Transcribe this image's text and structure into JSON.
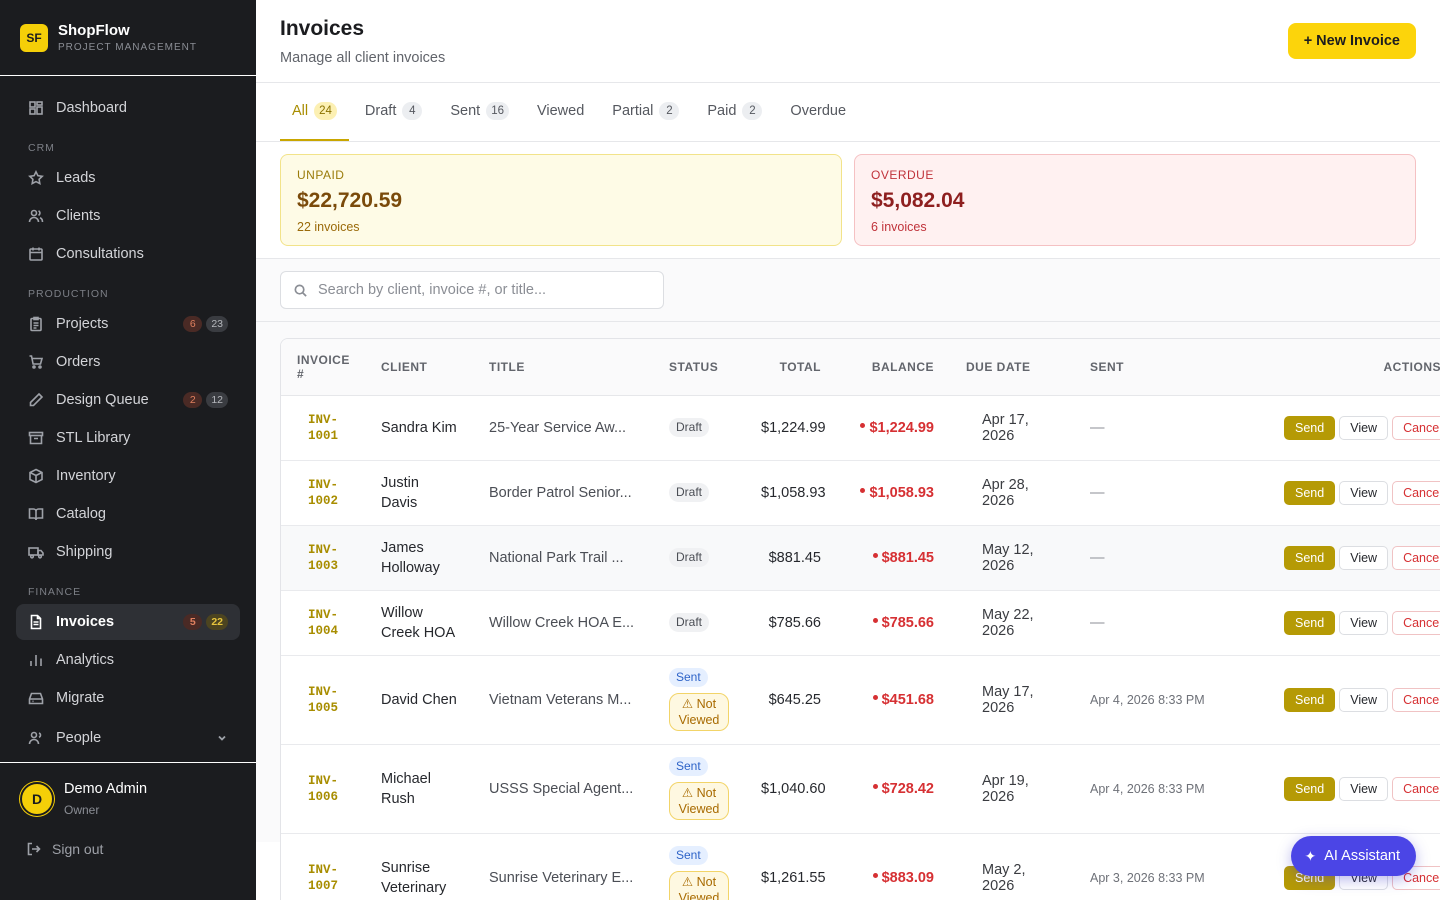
{
  "brand": {
    "logo": "SF",
    "name": "ShopFlow",
    "subtitle": "PROJECT MANAGEMENT"
  },
  "sidebar": {
    "dashboard": "Dashboard",
    "crm_label": "CRM",
    "leads": "Leads",
    "clients": "Clients",
    "consultations": "Consultations",
    "production_label": "PRODUCTION",
    "projects": "Projects",
    "projects_badge_red": "6",
    "projects_badge": "23",
    "orders": "Orders",
    "design_queue": "Design Queue",
    "design_badge_red": "2",
    "design_badge": "12",
    "stl_library": "STL Library",
    "inventory": "Inventory",
    "catalog": "Catalog",
    "shipping": "Shipping",
    "finance_label": "FINANCE",
    "invoices": "Invoices",
    "invoices_badge_red": "5",
    "invoices_badge_yellow": "22",
    "analytics": "Analytics",
    "migrate": "Migrate",
    "people": "People"
  },
  "user": {
    "initial": "D",
    "name": "Demo Admin",
    "role": "Owner",
    "signout": "Sign out"
  },
  "header": {
    "title": "Invoices",
    "subtitle": "Manage all client invoices",
    "new_button": "+ New Invoice"
  },
  "tabs": [
    {
      "label": "All",
      "count": "24"
    },
    {
      "label": "Draft",
      "count": "4"
    },
    {
      "label": "Sent",
      "count": "16"
    },
    {
      "label": "Viewed",
      "count": ""
    },
    {
      "label": "Partial",
      "count": "2"
    },
    {
      "label": "Paid",
      "count": "2"
    },
    {
      "label": "Overdue",
      "count": ""
    }
  ],
  "summary": {
    "unpaid": {
      "label": "UNPAID",
      "value": "$22,720.59",
      "count": "22 invoices"
    },
    "overdue": {
      "label": "OVERDUE",
      "value": "$5,082.04",
      "count": "6 invoices"
    }
  },
  "search": {
    "placeholder": "Search by client, invoice #, or title..."
  },
  "table": {
    "headers": {
      "invoice": "INVOICE #",
      "client": "CLIENT",
      "title": "TITLE",
      "status": "STATUS",
      "total": "TOTAL",
      "balance": "BALANCE",
      "due": "DUE DATE",
      "sent": "SENT",
      "actions": "ACTIONS"
    },
    "action_labels": {
      "send": "Send",
      "view": "View",
      "cancel": "Cancel"
    },
    "rows": [
      {
        "inv1": "INV-",
        "inv2": "1001",
        "client": "Sandra Kim",
        "title": "25-Year Service Aw...",
        "status": "Draft",
        "nv": "",
        "total": "$1,224.99",
        "balance": "$1,224.99",
        "due": "Apr 17, 2026",
        "sent": "—"
      },
      {
        "inv1": "INV-",
        "inv2": "1002",
        "client": "Justin Davis",
        "title": "Border Patrol Senior...",
        "status": "Draft",
        "nv": "",
        "total": "$1,058.93",
        "balance": "$1,058.93",
        "due": "Apr 28, 2026",
        "sent": "—"
      },
      {
        "inv1": "INV-",
        "inv2": "1003",
        "client": "James Holloway",
        "title": "National Park Trail ...",
        "status": "Draft",
        "nv": "",
        "total": "$881.45",
        "balance": "$881.45",
        "due": "May 12, 2026",
        "sent": "—"
      },
      {
        "inv1": "INV-",
        "inv2": "1004",
        "client": "Willow Creek HOA",
        "title": "Willow Creek HOA E...",
        "status": "Draft",
        "nv": "",
        "total": "$785.66",
        "balance": "$785.66",
        "due": "May 22, 2026",
        "sent": "—"
      },
      {
        "inv1": "INV-",
        "inv2": "1005",
        "client": "David Chen",
        "title": "Vietnam Veterans M...",
        "status": "Sent",
        "nv": "⚠ Not Viewed",
        "total": "$645.25",
        "balance": "$451.68",
        "due": "May 17, 2026",
        "sent": "Apr 4, 2026 8:33 PM"
      },
      {
        "inv1": "INV-",
        "inv2": "1006",
        "client": "Michael Rush",
        "title": "USSS Special Agent...",
        "status": "Sent",
        "nv": "⚠ Not Viewed",
        "total": "$1,040.60",
        "balance": "$728.42",
        "due": "Apr 19, 2026",
        "sent": "Apr 4, 2026 8:33 PM"
      },
      {
        "inv1": "INV-",
        "inv2": "1007",
        "client": "Sunrise Veterinary",
        "title": "Sunrise Veterinary E...",
        "status": "Sent",
        "nv": "⚠ Not Viewed",
        "total": "$1,261.55",
        "balance": "$883.09",
        "due": "May 2, 2026",
        "sent": "Apr 3, 2026 8:33 PM"
      }
    ]
  },
  "ai_button": {
    "label": "AI Assistant"
  },
  "colors": {
    "accent": "#fcd40b",
    "sidebar_bg": "#1b1c1f",
    "danger": "#d63033",
    "ai": "#4b45e6"
  }
}
